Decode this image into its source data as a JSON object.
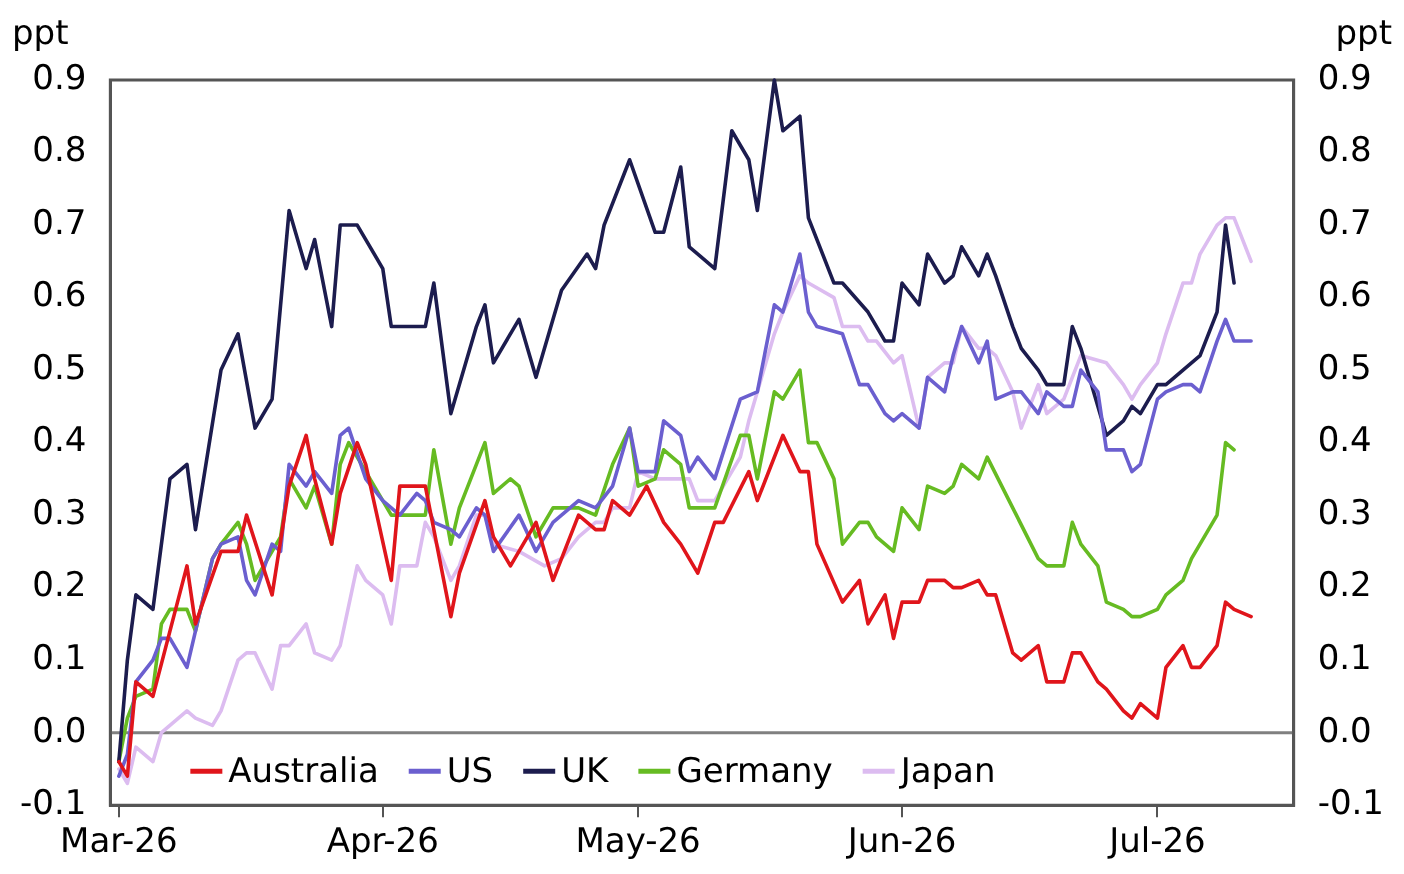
{
  "chart_data": {
    "type": "line",
    "ylabel": "ppt",
    "y2label": "ppt",
    "xlim": [
      "2026-02-28",
      "2026-07-17"
    ],
    "xticks": [
      {
        "value": "2026-03-01",
        "label": "Mar-26"
      },
      {
        "value": "2026-04-01",
        "label": "Apr-26"
      },
      {
        "value": "2026-05-01",
        "label": "May-26"
      },
      {
        "value": "2026-06-01",
        "label": "Jun-26"
      },
      {
        "value": "2026-07-01",
        "label": "Jul-26"
      }
    ],
    "ylim": [
      -0.1,
      0.9
    ],
    "yticks": [
      {
        "value": -0.1,
        "label": "-0.1"
      },
      {
        "value": 0,
        "label": "0.0"
      },
      0.1,
      0.2,
      0.3,
      0.4,
      0.5,
      0.6,
      0.7,
      0.8,
      0.9
    ],
    "y2lim": [
      -0.1,
      0.9
    ],
    "y2ticks": [
      {
        "value": -0.1,
        "label": "-0.1"
      },
      {
        "value": 0,
        "label": "0.0"
      },
      0.1,
      0.2,
      0.3,
      0.4,
      0.5,
      0.6,
      0.7,
      0.8,
      0.9
    ],
    "grid": false,
    "legend": "bottom left",
    "ref_lines": [
      {
        "axis": "y",
        "value": 0,
        "color": "#808080"
      }
    ],
    "series": [
      {
        "name": "Australia",
        "color": "#e0151b",
        "x": [
          "2026-03-01",
          "2026-03-02",
          "2026-03-03",
          "2026-03-05",
          "2026-03-07",
          "2026-03-09",
          "2026-03-10",
          "2026-03-13",
          "2026-03-15",
          "2026-03-16",
          "2026-03-19",
          "2026-03-21",
          "2026-03-23",
          "2026-03-24",
          "2026-03-26",
          "2026-03-27",
          "2026-03-29",
          "2026-03-30",
          "2026-04-02",
          "2026-04-03",
          "2026-04-06",
          "2026-04-09",
          "2026-04-10",
          "2026-04-13",
          "2026-04-14",
          "2026-04-16",
          "2026-04-19",
          "2026-04-21",
          "2026-04-24",
          "2026-04-26",
          "2026-04-27",
          "2026-04-28",
          "2026-04-30",
          "2026-05-02",
          "2026-05-04",
          "2026-05-06",
          "2026-05-08",
          "2026-05-10",
          "2026-05-11",
          "2026-05-14",
          "2026-05-15",
          "2026-05-18",
          "2026-05-20",
          "2026-05-21",
          "2026-05-22",
          "2026-05-25",
          "2026-05-27",
          "2026-05-28",
          "2026-05-30",
          "2026-05-31",
          "2026-06-01",
          "2026-06-03",
          "2026-06-04",
          "2026-06-06",
          "2026-06-07",
          "2026-06-08",
          "2026-06-10",
          "2026-06-11",
          "2026-06-12",
          "2026-06-14",
          "2026-06-15",
          "2026-06-17",
          "2026-06-18",
          "2026-06-20",
          "2026-06-21",
          "2026-06-22",
          "2026-06-24",
          "2026-06-25",
          "2026-06-27",
          "2026-06-28",
          "2026-06-29",
          "2026-07-01",
          "2026-07-02",
          "2026-07-04",
          "2026-07-05",
          "2026-07-06",
          "2026-07-08",
          "2026-07-09",
          "2026-07-10",
          "2026-07-12"
        ],
        "values": [
          -0.04,
          -0.06,
          0.07,
          0.05,
          0.14,
          0.23,
          0.15,
          0.25,
          0.25,
          0.3,
          0.19,
          0.34,
          0.41,
          0.35,
          0.26,
          0.33,
          0.4,
          0.37,
          0.21,
          0.34,
          0.34,
          0.16,
          0.22,
          0.32,
          0.27,
          0.23,
          0.29,
          0.21,
          0.3,
          0.28,
          0.28,
          0.32,
          0.3,
          0.34,
          0.29,
          0.26,
          0.22,
          0.29,
          0.29,
          0.36,
          0.32,
          0.41,
          0.36,
          0.36,
          0.26,
          0.18,
          0.21,
          0.15,
          0.19,
          0.13,
          0.18,
          0.18,
          0.21,
          0.21,
          0.2,
          0.2,
          0.21,
          0.19,
          0.19,
          0.11,
          0.1,
          0.12,
          0.07,
          0.07,
          0.11,
          0.11,
          0.07,
          0.06,
          0.03,
          0.02,
          0.04,
          0.02,
          0.09,
          0.12,
          0.09,
          0.09,
          0.12,
          0.18,
          0.17,
          0.16
        ]
      },
      {
        "name": "US",
        "color": "#6b5fcf",
        "x": [
          "2026-03-01",
          "2026-03-02",
          "2026-03-03",
          "2026-03-05",
          "2026-03-06",
          "2026-03-07",
          "2026-03-09",
          "2026-03-10",
          "2026-03-12",
          "2026-03-13",
          "2026-03-15",
          "2026-03-16",
          "2026-03-17",
          "2026-03-19",
          "2026-03-20",
          "2026-03-21",
          "2026-03-23",
          "2026-03-24",
          "2026-03-26",
          "2026-03-27",
          "2026-03-28",
          "2026-03-30",
          "2026-04-01",
          "2026-04-02",
          "2026-04-03",
          "2026-04-05",
          "2026-04-06",
          "2026-04-07",
          "2026-04-09",
          "2026-04-10",
          "2026-04-12",
          "2026-04-13",
          "2026-04-14",
          "2026-04-17",
          "2026-04-19",
          "2026-04-21",
          "2026-04-24",
          "2026-04-26",
          "2026-04-28",
          "2026-04-30",
          "2026-05-01",
          "2026-05-03",
          "2026-05-04",
          "2026-05-06",
          "2026-05-07",
          "2026-05-08",
          "2026-05-10",
          "2026-05-13",
          "2026-05-15",
          "2026-05-17",
          "2026-05-18",
          "2026-05-20",
          "2026-05-21",
          "2026-05-22",
          "2026-05-25",
          "2026-05-27",
          "2026-05-28",
          "2026-05-30",
          "2026-05-31",
          "2026-06-01",
          "2026-06-03",
          "2026-06-04",
          "2026-06-06",
          "2026-06-07",
          "2026-06-08",
          "2026-06-10",
          "2026-06-11",
          "2026-06-12",
          "2026-06-14",
          "2026-06-15",
          "2026-06-17",
          "2026-06-18",
          "2026-06-20",
          "2026-06-21",
          "2026-06-22",
          "2026-06-24",
          "2026-06-25",
          "2026-06-27",
          "2026-06-28",
          "2026-06-29",
          "2026-07-01",
          "2026-07-02",
          "2026-07-04",
          "2026-07-05",
          "2026-07-06",
          "2026-07-08",
          "2026-07-09",
          "2026-07-10",
          "2026-07-12"
        ],
        "values": [
          -0.06,
          -0.03,
          0.07,
          0.1,
          0.13,
          0.13,
          0.09,
          0.14,
          0.24,
          0.26,
          0.27,
          0.21,
          0.19,
          0.26,
          0.25,
          0.37,
          0.34,
          0.36,
          0.33,
          0.41,
          0.42,
          0.35,
          0.32,
          0.31,
          0.3,
          0.33,
          0.32,
          0.29,
          0.28,
          0.27,
          0.31,
          0.3,
          0.25,
          0.3,
          0.25,
          0.29,
          0.32,
          0.31,
          0.34,
          0.42,
          0.36,
          0.36,
          0.43,
          0.41,
          0.36,
          0.38,
          0.35,
          0.46,
          0.47,
          0.59,
          0.58,
          0.66,
          0.58,
          0.56,
          0.55,
          0.48,
          0.48,
          0.44,
          0.43,
          0.44,
          0.42,
          0.49,
          0.47,
          0.52,
          0.56,
          0.51,
          0.54,
          0.46,
          0.47,
          0.47,
          0.44,
          0.47,
          0.45,
          0.45,
          0.5,
          0.47,
          0.39,
          0.39,
          0.36,
          0.37,
          0.46,
          0.47,
          0.48,
          0.48,
          0.47,
          0.54,
          0.57,
          0.54,
          0.54
        ]
      },
      {
        "name": "UK",
        "color": "#1c1c4e",
        "x": [
          "2026-03-01",
          "2026-03-02",
          "2026-03-03",
          "2026-03-05",
          "2026-03-07",
          "2026-03-09",
          "2026-03-10",
          "2026-03-13",
          "2026-03-15",
          "2026-03-17",
          "2026-03-19",
          "2026-03-21",
          "2026-03-23",
          "2026-03-24",
          "2026-03-26",
          "2026-03-27",
          "2026-03-29",
          "2026-04-01",
          "2026-04-02",
          "2026-04-06",
          "2026-04-07",
          "2026-04-09",
          "2026-04-10",
          "2026-04-12",
          "2026-04-13",
          "2026-04-14",
          "2026-04-17",
          "2026-04-19",
          "2026-04-22",
          "2026-04-25",
          "2026-04-26",
          "2026-04-27",
          "2026-04-30",
          "2026-05-03",
          "2026-05-04",
          "2026-05-06",
          "2026-05-07",
          "2026-05-10",
          "2026-05-12",
          "2026-05-14",
          "2026-05-15",
          "2026-05-17",
          "2026-05-18",
          "2026-05-20",
          "2026-05-21",
          "2026-05-24",
          "2026-05-25",
          "2026-05-28",
          "2026-05-30",
          "2026-05-31",
          "2026-06-01",
          "2026-06-03",
          "2026-06-04",
          "2026-06-06",
          "2026-06-07",
          "2026-06-08",
          "2026-06-10",
          "2026-06-11",
          "2026-06-12",
          "2026-06-14",
          "2026-06-15",
          "2026-06-17",
          "2026-06-18",
          "2026-06-20",
          "2026-06-21",
          "2026-06-22",
          "2026-06-25",
          "2026-06-27",
          "2026-06-28",
          "2026-06-29",
          "2026-07-01",
          "2026-07-02",
          "2026-07-04",
          "2026-07-06",
          "2026-07-08",
          "2026-07-09",
          "2026-07-10"
        ],
        "values": [
          -0.04,
          0.1,
          0.19,
          0.17,
          0.35,
          0.37,
          0.28,
          0.5,
          0.55,
          0.42,
          0.46,
          0.72,
          0.64,
          0.68,
          0.56,
          0.7,
          0.7,
          0.64,
          0.56,
          0.56,
          0.62,
          0.44,
          0.48,
          0.56,
          0.59,
          0.51,
          0.57,
          0.49,
          0.61,
          0.66,
          0.64,
          0.7,
          0.79,
          0.69,
          0.69,
          0.78,
          0.67,
          0.64,
          0.83,
          0.79,
          0.72,
          0.9,
          0.83,
          0.85,
          0.71,
          0.62,
          0.62,
          0.58,
          0.54,
          0.54,
          0.62,
          0.59,
          0.66,
          0.62,
          0.63,
          0.67,
          0.63,
          0.66,
          0.63,
          0.56,
          0.53,
          0.5,
          0.48,
          0.48,
          0.56,
          0.53,
          0.41,
          0.43,
          0.45,
          0.44,
          0.48,
          0.48,
          0.5,
          0.52,
          0.58,
          0.7,
          0.62
        ]
      },
      {
        "name": "Germany",
        "color": "#66bb22",
        "x": [
          "2026-03-01",
          "2026-03-02",
          "2026-03-03",
          "2026-03-05",
          "2026-03-06",
          "2026-03-07",
          "2026-03-09",
          "2026-03-10",
          "2026-03-12",
          "2026-03-13",
          "2026-03-15",
          "2026-03-16",
          "2026-03-17",
          "2026-03-19",
          "2026-03-20",
          "2026-03-21",
          "2026-03-23",
          "2026-03-24",
          "2026-03-26",
          "2026-03-27",
          "2026-03-28",
          "2026-03-30",
          "2026-04-01",
          "2026-04-02",
          "2026-04-03",
          "2026-04-06",
          "2026-04-07",
          "2026-04-09",
          "2026-04-10",
          "2026-04-12",
          "2026-04-13",
          "2026-04-14",
          "2026-04-16",
          "2026-04-17",
          "2026-04-19",
          "2026-04-21",
          "2026-04-24",
          "2026-04-26",
          "2026-04-28",
          "2026-04-30",
          "2026-05-01",
          "2026-05-03",
          "2026-05-04",
          "2026-05-06",
          "2026-05-07",
          "2026-05-10",
          "2026-05-13",
          "2026-05-14",
          "2026-05-15",
          "2026-05-17",
          "2026-05-18",
          "2026-05-20",
          "2026-05-21",
          "2026-05-22",
          "2026-05-24",
          "2026-05-25",
          "2026-05-27",
          "2026-05-28",
          "2026-05-29",
          "2026-05-31",
          "2026-06-01",
          "2026-06-03",
          "2026-06-04",
          "2026-06-06",
          "2026-06-07",
          "2026-06-08",
          "2026-06-10",
          "2026-06-11",
          "2026-06-14",
          "2026-06-17",
          "2026-06-18",
          "2026-06-20",
          "2026-06-21",
          "2026-06-22",
          "2026-06-24",
          "2026-06-25",
          "2026-06-27",
          "2026-06-28",
          "2026-06-29",
          "2026-07-01",
          "2026-07-02",
          "2026-07-04",
          "2026-07-05",
          "2026-07-06",
          "2026-07-08",
          "2026-07-09",
          "2026-07-10"
        ],
        "values": [
          -0.04,
          0.02,
          0.05,
          0.06,
          0.15,
          0.17,
          0.17,
          0.14,
          0.24,
          0.26,
          0.29,
          0.26,
          0.21,
          0.25,
          0.27,
          0.35,
          0.31,
          0.34,
          0.26,
          0.37,
          0.4,
          0.36,
          0.32,
          0.3,
          0.3,
          0.3,
          0.39,
          0.26,
          0.31,
          0.37,
          0.4,
          0.33,
          0.35,
          0.34,
          0.27,
          0.31,
          0.31,
          0.3,
          0.37,
          0.42,
          0.34,
          0.35,
          0.39,
          0.37,
          0.31,
          0.31,
          0.41,
          0.41,
          0.35,
          0.47,
          0.46,
          0.5,
          0.4,
          0.4,
          0.35,
          0.26,
          0.29,
          0.29,
          0.27,
          0.25,
          0.31,
          0.28,
          0.34,
          0.33,
          0.34,
          0.37,
          0.35,
          0.38,
          0.31,
          0.24,
          0.23,
          0.23,
          0.29,
          0.26,
          0.23,
          0.18,
          0.17,
          0.16,
          0.16,
          0.17,
          0.19,
          0.21,
          0.24,
          0.26,
          0.3,
          0.4,
          0.39
        ]
      },
      {
        "name": "Japan",
        "color": "#dcbcf0",
        "x": [
          "2026-03-01",
          "2026-03-02",
          "2026-03-03",
          "2026-03-05",
          "2026-03-06",
          "2026-03-07",
          "2026-03-09",
          "2026-03-10",
          "2026-03-12",
          "2026-03-13",
          "2026-03-15",
          "2026-03-16",
          "2026-03-17",
          "2026-03-19",
          "2026-03-20",
          "2026-03-21",
          "2026-03-23",
          "2026-03-24",
          "2026-03-26",
          "2026-03-27",
          "2026-03-29",
          "2026-03-30",
          "2026-04-01",
          "2026-04-02",
          "2026-04-03",
          "2026-04-05",
          "2026-04-06",
          "2026-04-07",
          "2026-04-09",
          "2026-04-10",
          "2026-04-12",
          "2026-04-13",
          "2026-04-14",
          "2026-04-17",
          "2026-04-20",
          "2026-04-22",
          "2026-04-24",
          "2026-04-26",
          "2026-04-27",
          "2026-04-28",
          "2026-04-30",
          "2026-05-01",
          "2026-05-03",
          "2026-05-04",
          "2026-05-07",
          "2026-05-08",
          "2026-05-10",
          "2026-05-13",
          "2026-05-14",
          "2026-05-17",
          "2026-05-18",
          "2026-05-20",
          "2026-05-21",
          "2026-05-24",
          "2026-05-25",
          "2026-05-27",
          "2026-05-28",
          "2026-05-29",
          "2026-05-31",
          "2026-06-01",
          "2026-06-03",
          "2026-06-04",
          "2026-06-06",
          "2026-06-07",
          "2026-06-08",
          "2026-06-10",
          "2026-06-11",
          "2026-06-12",
          "2026-06-14",
          "2026-06-15",
          "2026-06-17",
          "2026-06-18",
          "2026-06-20",
          "2026-06-21",
          "2026-06-22",
          "2026-06-25",
          "2026-06-27",
          "2026-06-28",
          "2026-06-29",
          "2026-07-01",
          "2026-07-02",
          "2026-07-04",
          "2026-07-05",
          "2026-07-06",
          "2026-07-08",
          "2026-07-09",
          "2026-07-10",
          "2026-07-12"
        ],
        "values": [
          -0.05,
          -0.07,
          -0.02,
          -0.04,
          0,
          0.01,
          0.03,
          0.02,
          0.01,
          0.03,
          0.1,
          0.11,
          0.11,
          0.06,
          0.12,
          0.12,
          0.15,
          0.11,
          0.1,
          0.12,
          0.23,
          0.21,
          0.19,
          0.15,
          0.23,
          0.23,
          0.29,
          0.27,
          0.21,
          0.23,
          0.3,
          0.3,
          0.26,
          0.25,
          0.23,
          0.24,
          0.27,
          0.29,
          0.29,
          0.31,
          0.31,
          0.36,
          0.35,
          0.35,
          0.35,
          0.32,
          0.32,
          0.38,
          0.43,
          0.55,
          0.58,
          0.63,
          0.62,
          0.6,
          0.56,
          0.56,
          0.54,
          0.54,
          0.51,
          0.52,
          0.42,
          0.49,
          0.51,
          0.51,
          0.56,
          0.53,
          0.53,
          0.52,
          0.47,
          0.42,
          0.48,
          0.44,
          0.46,
          0.49,
          0.52,
          0.51,
          0.48,
          0.46,
          0.48,
          0.51,
          0.55,
          0.62,
          0.62,
          0.66,
          0.7,
          0.71,
          0.71,
          0.65
        ]
      }
    ]
  }
}
